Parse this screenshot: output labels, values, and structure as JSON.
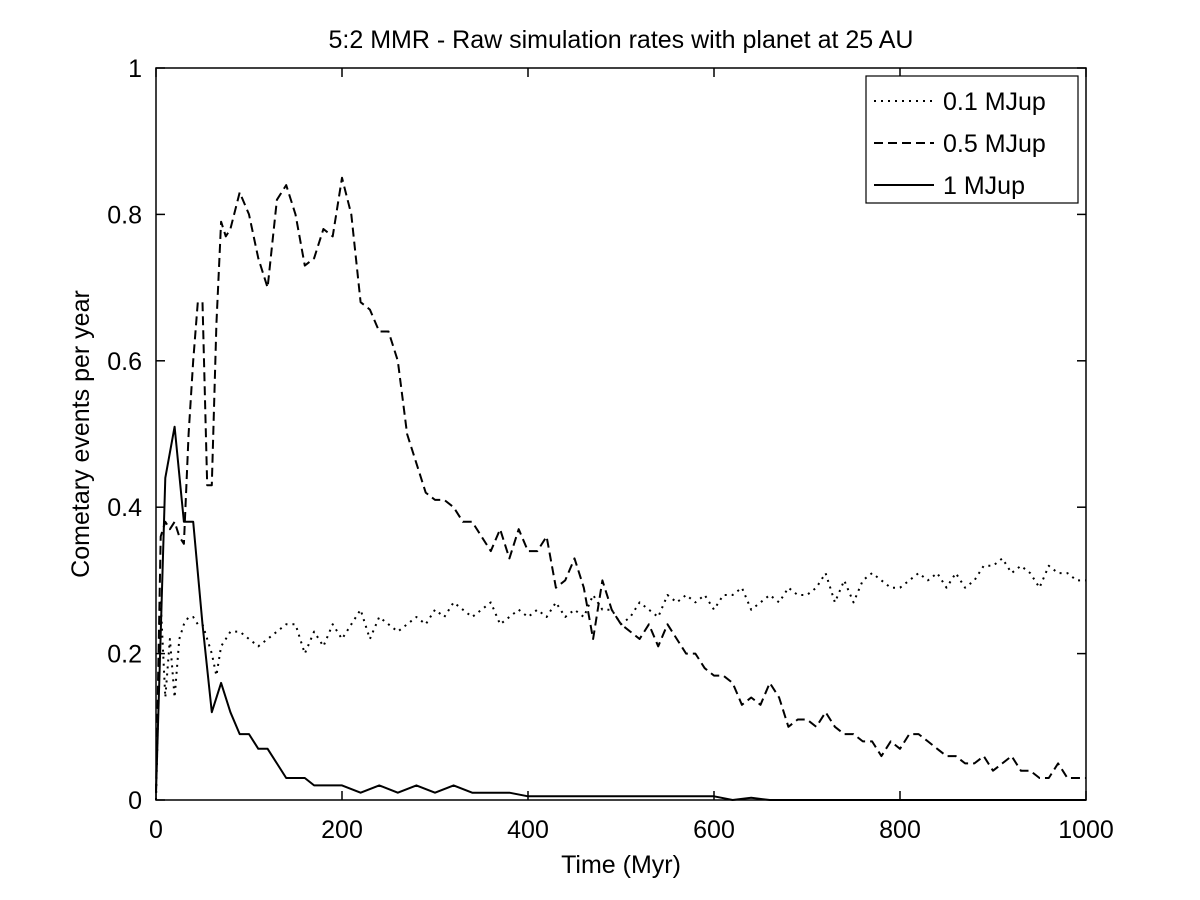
{
  "chart_data": {
    "type": "line",
    "title": "5:2 MMR - Raw simulation rates with planet at 25 AU",
    "xlabel": "Time (Myr)",
    "ylabel": "Cometary events per year",
    "xlim": [
      0,
      1000
    ],
    "ylim": [
      0,
      1
    ],
    "xticks": [
      0,
      200,
      400,
      600,
      800,
      1000
    ],
    "xtick_labels": [
      "0",
      "200",
      "400",
      "600",
      "800",
      "1000"
    ],
    "yticks": [
      0,
      0.2,
      0.4,
      0.6,
      0.8,
      1
    ],
    "ytick_labels": [
      "0",
      "0.2",
      "0.4",
      "0.6",
      "0.8",
      "1"
    ],
    "grid": false,
    "legend_position": "top-right",
    "series": [
      {
        "name": "0.1 MJup",
        "style": "dotted",
        "color": "#000000",
        "x": [
          0,
          5,
          10,
          15,
          20,
          25,
          30,
          35,
          40,
          45,
          50,
          55,
          60,
          65,
          70,
          75,
          80,
          90,
          100,
          110,
          120,
          130,
          140,
          150,
          160,
          170,
          180,
          190,
          200,
          210,
          220,
          230,
          240,
          250,
          260,
          270,
          280,
          290,
          300,
          310,
          320,
          330,
          340,
          350,
          360,
          370,
          380,
          390,
          400,
          410,
          420,
          430,
          440,
          450,
          460,
          470,
          480,
          490,
          500,
          510,
          520,
          530,
          540,
          550,
          560,
          570,
          580,
          590,
          600,
          610,
          620,
          630,
          640,
          650,
          660,
          670,
          680,
          690,
          700,
          710,
          720,
          730,
          740,
          750,
          760,
          770,
          780,
          790,
          800,
          810,
          820,
          830,
          840,
          850,
          860,
          870,
          880,
          890,
          900,
          910,
          920,
          930,
          940,
          950,
          960,
          970,
          980,
          990,
          1000
        ],
        "values": [
          0.0,
          0.27,
          0.14,
          0.22,
          0.14,
          0.22,
          0.24,
          0.25,
          0.25,
          0.24,
          0.24,
          0.22,
          0.2,
          0.17,
          0.21,
          0.22,
          0.23,
          0.23,
          0.22,
          0.21,
          0.22,
          0.23,
          0.24,
          0.24,
          0.2,
          0.23,
          0.21,
          0.24,
          0.22,
          0.24,
          0.26,
          0.22,
          0.25,
          0.24,
          0.23,
          0.24,
          0.25,
          0.24,
          0.26,
          0.25,
          0.27,
          0.26,
          0.25,
          0.26,
          0.27,
          0.24,
          0.25,
          0.26,
          0.25,
          0.26,
          0.25,
          0.27,
          0.25,
          0.26,
          0.25,
          0.28,
          0.26,
          0.26,
          0.24,
          0.25,
          0.27,
          0.26,
          0.25,
          0.28,
          0.27,
          0.28,
          0.27,
          0.28,
          0.26,
          0.28,
          0.28,
          0.29,
          0.26,
          0.27,
          0.28,
          0.27,
          0.29,
          0.28,
          0.28,
          0.29,
          0.31,
          0.27,
          0.3,
          0.27,
          0.3,
          0.31,
          0.3,
          0.29,
          0.29,
          0.3,
          0.31,
          0.3,
          0.31,
          0.29,
          0.31,
          0.29,
          0.3,
          0.32,
          0.32,
          0.33,
          0.31,
          0.32,
          0.31,
          0.29,
          0.32,
          0.31,
          0.31,
          0.3,
          0.3
        ]
      },
      {
        "name": "0.5 MJup",
        "style": "dashed",
        "color": "#000000",
        "x": [
          0,
          5,
          10,
          15,
          20,
          25,
          30,
          35,
          40,
          45,
          50,
          55,
          60,
          65,
          70,
          75,
          80,
          90,
          100,
          110,
          120,
          130,
          140,
          150,
          160,
          170,
          180,
          190,
          200,
          210,
          220,
          230,
          240,
          250,
          260,
          270,
          280,
          290,
          300,
          310,
          320,
          330,
          340,
          350,
          360,
          370,
          380,
          390,
          400,
          410,
          420,
          430,
          440,
          450,
          460,
          470,
          480,
          490,
          500,
          510,
          520,
          530,
          540,
          550,
          560,
          570,
          580,
          590,
          600,
          610,
          620,
          630,
          640,
          650,
          660,
          670,
          680,
          690,
          700,
          710,
          720,
          730,
          740,
          750,
          760,
          770,
          780,
          790,
          800,
          810,
          820,
          830,
          840,
          850,
          860,
          870,
          880,
          890,
          900,
          910,
          920,
          930,
          940,
          950,
          960,
          970,
          980,
          990,
          1000
        ],
        "values": [
          0.01,
          0.36,
          0.38,
          0.37,
          0.38,
          0.36,
          0.35,
          0.5,
          0.6,
          0.68,
          0.68,
          0.43,
          0.43,
          0.65,
          0.79,
          0.77,
          0.78,
          0.83,
          0.8,
          0.74,
          0.7,
          0.82,
          0.84,
          0.8,
          0.73,
          0.74,
          0.78,
          0.77,
          0.85,
          0.8,
          0.68,
          0.67,
          0.64,
          0.64,
          0.6,
          0.5,
          0.46,
          0.42,
          0.41,
          0.41,
          0.4,
          0.38,
          0.38,
          0.36,
          0.34,
          0.37,
          0.33,
          0.37,
          0.34,
          0.34,
          0.36,
          0.29,
          0.3,
          0.33,
          0.29,
          0.22,
          0.3,
          0.26,
          0.24,
          0.23,
          0.22,
          0.24,
          0.21,
          0.24,
          0.22,
          0.2,
          0.2,
          0.18,
          0.17,
          0.17,
          0.16,
          0.13,
          0.14,
          0.13,
          0.16,
          0.14,
          0.1,
          0.11,
          0.11,
          0.1,
          0.12,
          0.1,
          0.09,
          0.09,
          0.08,
          0.08,
          0.06,
          0.08,
          0.07,
          0.09,
          0.09,
          0.08,
          0.07,
          0.06,
          0.06,
          0.05,
          0.05,
          0.06,
          0.04,
          0.05,
          0.06,
          0.04,
          0.04,
          0.03,
          0.03,
          0.05,
          0.03,
          0.03,
          0.03
        ]
      },
      {
        "name": "1 MJup",
        "style": "solid",
        "color": "#000000",
        "x": [
          0,
          10,
          20,
          30,
          40,
          50,
          60,
          70,
          80,
          90,
          100,
          110,
          120,
          130,
          140,
          150,
          160,
          170,
          180,
          190,
          200,
          220,
          240,
          260,
          280,
          300,
          320,
          340,
          360,
          380,
          400,
          420,
          440,
          460,
          480,
          500,
          520,
          540,
          560,
          580,
          600,
          620,
          640,
          660,
          680,
          700,
          750,
          800,
          850,
          900,
          950,
          1000
        ],
        "values": [
          0.01,
          0.44,
          0.51,
          0.38,
          0.38,
          0.24,
          0.12,
          0.16,
          0.12,
          0.09,
          0.09,
          0.07,
          0.07,
          0.05,
          0.03,
          0.03,
          0.03,
          0.02,
          0.02,
          0.02,
          0.02,
          0.01,
          0.02,
          0.01,
          0.02,
          0.01,
          0.02,
          0.01,
          0.01,
          0.01,
          0.005,
          0.005,
          0.005,
          0.005,
          0.005,
          0.005,
          0.005,
          0.005,
          0.005,
          0.005,
          0.005,
          0.0,
          0.003,
          0.0,
          0.0,
          0.0,
          0.0,
          0.0,
          0.0,
          0.0,
          0.0,
          0.0
        ]
      }
    ]
  }
}
